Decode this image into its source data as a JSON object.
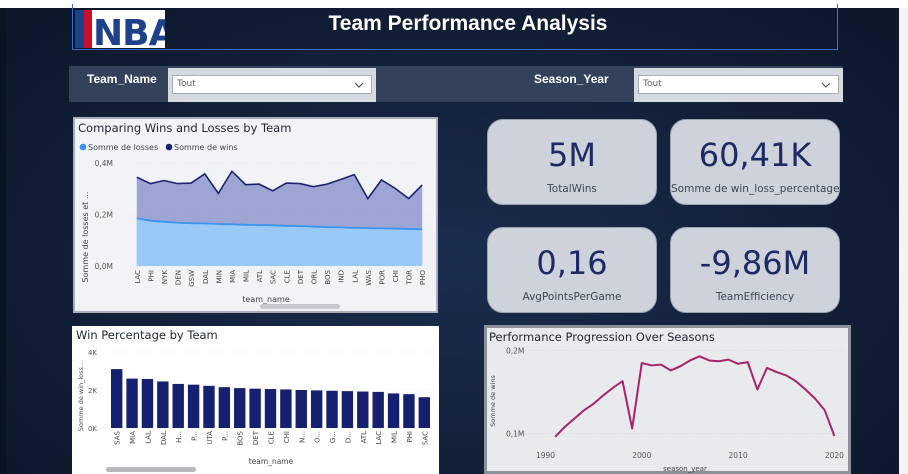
{
  "header": {
    "logo_text": "NBA",
    "title": "Team Performance Analysis"
  },
  "filters": {
    "team": {
      "label": "Team_Name",
      "value": "Tout"
    },
    "season": {
      "label": "Season_Year",
      "value": "Tout"
    }
  },
  "kpis": [
    {
      "value": "5M",
      "label": "TotalWins"
    },
    {
      "value": "60,41K",
      "label": "Somme de win_loss_percentage"
    },
    {
      "value": "0,16",
      "label": "AvgPointsPerGame"
    },
    {
      "value": "-9,86M",
      "label": "TeamEfficiency"
    }
  ],
  "colors": {
    "wins": "#1b2470",
    "losses": "#3b93f0",
    "bars": "#15206f",
    "line": "#a8246a"
  },
  "chart_data": [
    {
      "type": "area",
      "title": "Comparing Wins and Losses by Team",
      "xlabel": "team_name",
      "ylabel": "Somme de losses et ...",
      "ylim": [
        0,
        400000
      ],
      "yticks": [
        0,
        200000,
        400000
      ],
      "ytick_labels": [
        "0,0M",
        "0,2M",
        "0,4M"
      ],
      "legend": "top-left",
      "categories": [
        "LAC",
        "PHI",
        "NYK",
        "DEN",
        "GSW",
        "DAL",
        "MIN",
        "MIA",
        "MIL",
        "ATL",
        "SAC",
        "CLE",
        "DET",
        "ORL",
        "BOS",
        "IND",
        "LAL",
        "WAS",
        "POR",
        "CHI",
        "TOR",
        "PHO"
      ],
      "series": [
        {
          "name": "Somme de losses",
          "values": [
            185000,
            176000,
            172000,
            168000,
            166000,
            165000,
            163000,
            162000,
            160000,
            159000,
            158000,
            156000,
            155000,
            153000,
            151000,
            150000,
            148000,
            147000,
            146000,
            145000,
            144000,
            143000
          ]
        },
        {
          "name": "Somme de wins",
          "values": [
            345000,
            320000,
            332000,
            320000,
            322000,
            358000,
            282000,
            368000,
            316000,
            318000,
            292000,
            322000,
            320000,
            308000,
            318000,
            336000,
            355000,
            262000,
            334000,
            302000,
            262000,
            315000
          ]
        }
      ]
    },
    {
      "type": "bar",
      "title": "Win Percentage by Team",
      "xlabel": "team_name",
      "ylabel": "Somme de win_loss...",
      "ylim": [
        0,
        4000
      ],
      "yticks": [
        0,
        2000,
        4000
      ],
      "ytick_labels": [
        "0K",
        "2K",
        "4K"
      ],
      "categories": [
        "SAS",
        "MIA",
        "LAL",
        "DAL",
        "H...",
        "P...",
        "UTA",
        "P...",
        "BOS",
        "DET",
        "CLE",
        "CHI",
        "N...",
        "O...",
        "G...",
        "D...",
        "ATL",
        "LAC",
        "MIL",
        "PHI",
        "SAC"
      ],
      "values": [
        3100,
        2600,
        2580,
        2450,
        2320,
        2280,
        2220,
        2150,
        2100,
        2070,
        2050,
        2030,
        2000,
        1980,
        1960,
        1940,
        1920,
        1900,
        1820,
        1780,
        1620
      ]
    },
    {
      "type": "line",
      "title": "Performance Progression Over Seasons",
      "xlabel": "season_year",
      "ylabel": "Somme de wins",
      "xlim": [
        1986,
        2021
      ],
      "ylim": [
        85000,
        203000
      ],
      "xticks": [
        1990,
        2000,
        2010,
        2020
      ],
      "yticks": [
        100000,
        200000
      ],
      "ytick_labels": [
        "0,1M",
        "0,2M"
      ],
      "x": [
        1991,
        1992,
        1993,
        1994,
        1995,
        1996,
        1997,
        1998,
        1999,
        2000,
        2001,
        2002,
        2003,
        2004,
        2005,
        2006,
        2007,
        2008,
        2009,
        2010,
        2011,
        2012,
        2013,
        2014,
        2015,
        2016,
        2017,
        2018,
        2019,
        2020
      ],
      "y": [
        96000,
        108000,
        118000,
        128000,
        136000,
        146000,
        155000,
        163000,
        106000,
        185000,
        182000,
        183000,
        176000,
        181000,
        188000,
        193000,
        188000,
        187000,
        189000,
        184000,
        186000,
        153000,
        179000,
        174000,
        170000,
        163000,
        153000,
        142000,
        128000,
        97000
      ]
    }
  ]
}
